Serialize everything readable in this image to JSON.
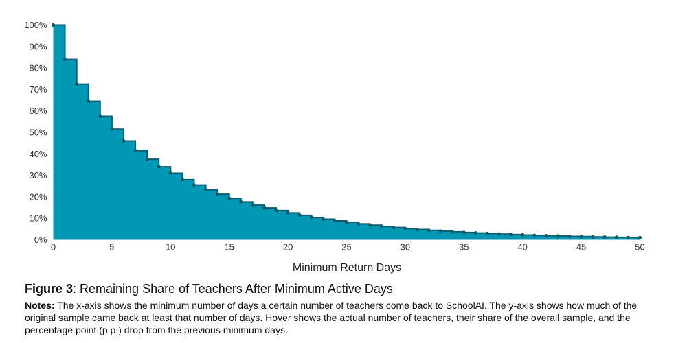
{
  "chart_data": {
    "type": "area",
    "step": true,
    "xlabel": "Minimum Return Days",
    "ylabel": "",
    "xlim": [
      0,
      50
    ],
    "ylim": [
      0,
      100
    ],
    "x_ticks": [
      0,
      5,
      10,
      15,
      20,
      25,
      30,
      35,
      40,
      45,
      50
    ],
    "x_tick_labels": [
      "0",
      "5",
      "10",
      "15",
      "20",
      "25",
      "30",
      "35",
      "40",
      "45",
      "50"
    ],
    "y_ticks": [
      0,
      10,
      20,
      30,
      40,
      50,
      60,
      70,
      80,
      90,
      100
    ],
    "y_tick_labels": [
      "0%",
      "10%",
      "20%",
      "30%",
      "40%",
      "50%",
      "60%",
      "70%",
      "80%",
      "90%",
      "100%"
    ],
    "grid": false,
    "colors": {
      "fill": "#0098b4",
      "line": "#0b5a6e",
      "marker": "#0b5a6e"
    },
    "series": [
      {
        "x": [
          0,
          1,
          2,
          3,
          4,
          5,
          6,
          7,
          8,
          9,
          10,
          11,
          12,
          13,
          14,
          15,
          16,
          17,
          18,
          19,
          20,
          21,
          22,
          23,
          24,
          25,
          26,
          27,
          28,
          29,
          30,
          31,
          32,
          33,
          34,
          35,
          36,
          37,
          38,
          39,
          40,
          41,
          42,
          43,
          44,
          45,
          46,
          47,
          48,
          49,
          50
        ],
        "values": [
          100,
          84,
          72.5,
          64.5,
          57.5,
          51.5,
          46,
          41.5,
          37.5,
          34,
          31,
          28,
          25.5,
          23.3,
          21.2,
          19.3,
          17.6,
          16.1,
          14.8,
          13.6,
          12.5,
          11.4,
          10.4,
          9.6,
          8.8,
          8.1,
          7.4,
          6.8,
          6.2,
          5.7,
          5.2,
          4.8,
          4.4,
          4.05,
          3.7,
          3.4,
          3.15,
          2.9,
          2.65,
          2.45,
          2.25,
          2.05,
          1.9,
          1.75,
          1.6,
          1.5,
          1.35,
          1.25,
          1.15,
          1.05,
          1.0
        ]
      }
    ]
  },
  "caption": {
    "figure_label": "Figure 3",
    "figure_title": ": Remaining Share of Teachers After Minimum Active Days",
    "notes_label": "Notes:",
    "notes_text": " The x-axis shows the minimum number of days a certain number of teachers come back to SchoolAI. The y-axis shows how much of the original sample came back at least that number of days. Hover shows the actual number of teachers, their share of the overall sample, and the percentage point (p.p.) drop from the previous minimum days."
  }
}
